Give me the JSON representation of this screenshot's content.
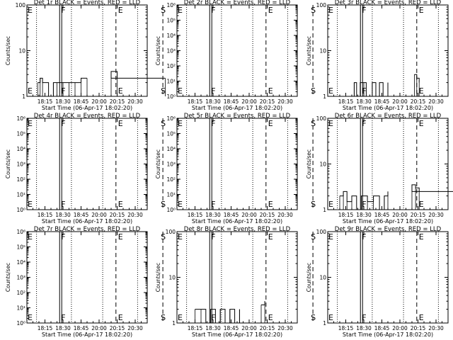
{
  "figure_date": "06-Apr-17",
  "x_tick_labels": [
    "18:15",
    "18:30",
    "18:45",
    "20:00",
    "20:15",
    "20:30"
  ],
  "x_axis_label": "Start Time (06-Apr-17 18:02:20)",
  "y_axis_label": "Counts/sec",
  "marker_labels": {
    "F": "F",
    "S": "S",
    "E": "E"
  },
  "chart_data": [
    {
      "type": "line",
      "title": "Det 1r BLACK = Events, RED = LLD",
      "ylabel": "Counts/sec",
      "xlabel": "Start Time (06-Apr-17 18:02:20)",
      "yscale": "log",
      "ylim": [
        1,
        100
      ],
      "y_tick_labels": [
        "1",
        "10",
        "100"
      ],
      "x_ticks": [
        "18:15",
        "18:30",
        "18:45",
        "20:00",
        "20:15",
        "20:30"
      ],
      "markers": {
        "F": "18:28",
        "S": "19:55",
        "E": "20:15"
      },
      "series": [
        {
          "name": "Events",
          "color": "#000000",
          "x": [
            "18:09",
            "18:11",
            "18:13",
            "18:18",
            "18:22",
            "18:25",
            "18:30",
            "18:35",
            "18:40",
            "18:45",
            "18:50",
            "19:55",
            "20:10",
            "20:15"
          ],
          "y": [
            2,
            2.5,
            2,
            1,
            2,
            2,
            2,
            2,
            2,
            2.5,
            2.5,
            2.5,
            3.5,
            2.5
          ]
        }
      ]
    },
    {
      "type": "line",
      "title": "Det 2r BLACK = Events, RED = LLD",
      "ylabel": "Counts/sec",
      "xlabel": "Start Time (06-Apr-17 18:02:20)",
      "yscale": "log",
      "ylim": [
        1,
        1000000
      ],
      "y_tick_labels": [
        "10⁰",
        "10¹",
        "10²",
        "10³",
        "10⁴",
        "10⁵",
        "10⁶"
      ],
      "x_ticks": [
        "18:15",
        "18:30",
        "18:45",
        "20:00",
        "20:15",
        "20:30"
      ],
      "markers": {
        "F": "18:28",
        "S": "19:55",
        "E": "20:15"
      },
      "series": []
    },
    {
      "type": "line",
      "title": "Det 3r BLACK = Events, RED = LLD",
      "ylabel": "Counts/sec",
      "xlabel": "Start Time (06-Apr-17 18:02:20)",
      "yscale": "log",
      "ylim": [
        1,
        100
      ],
      "y_tick_labels": [
        "1",
        "10",
        "100"
      ],
      "x_ticks": [
        "18:15",
        "18:30",
        "18:45",
        "20:00",
        "20:15",
        "20:30"
      ],
      "markers": {
        "F": "18:28",
        "S": "19:55",
        "E": "20:15"
      },
      "series": [
        {
          "name": "Events",
          "color": "#000000",
          "x": [
            "18:20",
            "18:22",
            "18:24",
            "18:27",
            "18:30",
            "18:32",
            "18:37",
            "18:40",
            "18:43",
            "18:46",
            "18:50",
            "20:12",
            "20:14",
            "20:16"
          ],
          "y": [
            1,
            2,
            1,
            2,
            2,
            1,
            2,
            1,
            2,
            1,
            2,
            3,
            2.5,
            2
          ]
        }
      ]
    },
    {
      "type": "line",
      "title": "Det 4r BLACK = Events, RED = LLD",
      "ylabel": "Counts/sec",
      "xlabel": "Start Time (06-Apr-17 18:02:20)",
      "yscale": "log",
      "ylim": [
        1,
        1000000
      ],
      "y_tick_labels": [
        "10⁰",
        "10¹",
        "10²",
        "10³",
        "10⁴",
        "10⁵",
        "10⁶"
      ],
      "x_ticks": [
        "18:15",
        "18:30",
        "18:45",
        "20:00",
        "20:15",
        "20:30"
      ],
      "markers": {
        "F": "18:28",
        "S": "19:55",
        "E": "20:15"
      },
      "series": []
    },
    {
      "type": "line",
      "title": "Det 5r BLACK = Events, RED = LLD",
      "ylabel": "Counts/sec",
      "xlabel": "Start Time (06-Apr-17 18:02:20)",
      "yscale": "log",
      "ylim": [
        1,
        1000000
      ],
      "y_tick_labels": [
        "10⁰",
        "10¹",
        "10²",
        "10³",
        "10⁴",
        "10⁵",
        "10⁶"
      ],
      "x_ticks": [
        "18:15",
        "18:30",
        "18:45",
        "20:00",
        "20:15",
        "20:30"
      ],
      "markers": {
        "F": "18:28",
        "S": "19:55",
        "E": "20:15"
      },
      "series": []
    },
    {
      "type": "line",
      "title": "Det 6r BLACK = Events, RED = LLD",
      "ylabel": "Counts/sec",
      "xlabel": "Start Time (06-Apr-17 18:02:20)",
      "yscale": "log",
      "ylim": [
        1,
        100
      ],
      "y_tick_labels": [
        "1",
        "10",
        "100"
      ],
      "x_ticks": [
        "18:15",
        "18:30",
        "18:45",
        "20:00",
        "20:15",
        "20:30"
      ],
      "markers": {
        "F": "18:28",
        "S": "19:55",
        "E": "20:15"
      },
      "series": [
        {
          "name": "Events",
          "color": "#000000",
          "x": [
            "18:10",
            "18:13",
            "18:16",
            "18:20",
            "18:24",
            "18:28",
            "18:33",
            "18:38",
            "18:43",
            "18:47",
            "18:50",
            "19:55",
            "20:10",
            "20:13",
            "20:16"
          ],
          "y": [
            2,
            2.5,
            1.5,
            2,
            1,
            2,
            1.5,
            2,
            1,
            2,
            2.5,
            2.5,
            3.5,
            3,
            2.5
          ]
        }
      ]
    },
    {
      "type": "line",
      "title": "Det 7r BLACK = Events, RED = LLD",
      "ylabel": "Counts/sec",
      "xlabel": "Start Time (06-Apr-17 18:02:20)",
      "yscale": "log",
      "ylim": [
        1,
        1000000
      ],
      "y_tick_labels": [
        "10⁰",
        "10¹",
        "10²",
        "10³",
        "10⁴",
        "10⁵",
        "10⁶"
      ],
      "x_ticks": [
        "18:15",
        "18:30",
        "18:45",
        "20:00",
        "20:15",
        "20:30"
      ],
      "markers": {
        "F": "18:28",
        "S": "19:55",
        "E": "20:15"
      },
      "series": []
    },
    {
      "type": "line",
      "title": "Det 8r BLACK = Events, RED = LLD",
      "ylabel": "Counts/sec",
      "xlabel": "Start Time (06-Apr-17 18:02:20)",
      "yscale": "log",
      "ylim": [
        1,
        100
      ],
      "y_tick_labels": [
        "1",
        "10",
        "100"
      ],
      "x_ticks": [
        "18:15",
        "18:30",
        "18:45",
        "20:00",
        "20:15",
        "20:30"
      ],
      "markers": {
        "F": "18:28",
        "S": "19:55",
        "E": "20:15"
      },
      "series": [
        {
          "name": "Events",
          "color": "#000000",
          "x": [
            "18:15",
            "18:20",
            "18:24",
            "18:28",
            "18:32",
            "18:36",
            "18:40",
            "18:44",
            "18:48",
            "18:52",
            "20:10",
            "20:13"
          ],
          "y": [
            2,
            2,
            1,
            2,
            1,
            2,
            1,
            2,
            1,
            2,
            2.5,
            3
          ]
        }
      ]
    },
    {
      "type": "line",
      "title": "Det 9r BLACK = Events, RED = LLD",
      "ylabel": "Counts/sec",
      "xlabel": "Start Time (06-Apr-17 18:02:20)",
      "yscale": "log",
      "ylim": [
        1,
        100
      ],
      "y_tick_labels": [
        "1",
        "10",
        "100"
      ],
      "x_ticks": [
        "18:15",
        "18:30",
        "18:45",
        "20:00",
        "20:15",
        "20:30"
      ],
      "markers": {
        "F": "18:28",
        "S": "19:55",
        "E": "20:15"
      },
      "series": []
    }
  ]
}
